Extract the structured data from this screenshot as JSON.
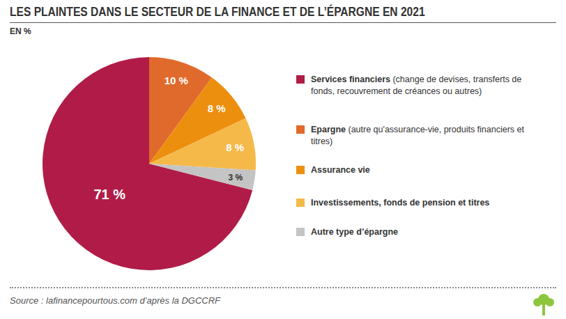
{
  "chart_data": {
    "type": "pie",
    "title": "LES PLAINTES DANS LE SECTEUR DE LA FINANCE ET DE L’ÉPARGNE EN 2021",
    "subtitle": "EN %",
    "categories": [
      "Services financiers (change de devises, transferts de fonds, recouvrement de créances ou autres)",
      "Epargne (autre qu'assurance-vie, produits financiers et titres)",
      "Assurance vie",
      "Investissements, fonds de pension et titres",
      "Autre type d’épargne"
    ],
    "values": [
      71,
      10,
      8,
      8,
      3
    ],
    "value_labels": [
      "71 %",
      "10 %",
      "8 %",
      "8 %",
      "3 %"
    ],
    "colors": [
      "#b01c47",
      "#e06a2b",
      "#ec8f0f",
      "#f5b94a",
      "#c4c4c4"
    ],
    "data_labels": true,
    "source": "Source : lafinancepourtous.com d’après la DGCCRF"
  }
}
